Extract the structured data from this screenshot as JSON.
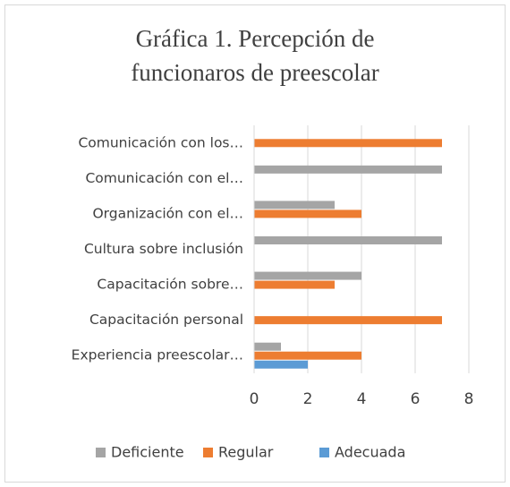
{
  "chart_data": {
    "type": "barh",
    "title": "Gráfica 1. Percepción de funcionaros de preescolar",
    "categories": [
      "Comunicación con los…",
      "Comunicación con el…",
      "Organización con el…",
      "Cultura sobre inclusión",
      "Capacitación sobre…",
      "Capacitación personal",
      "Experiencia preescolar…"
    ],
    "series": [
      {
        "name": "Deficiente",
        "color": "#a5a5a5",
        "values": [
          0,
          7,
          3,
          7,
          4,
          0,
          1
        ]
      },
      {
        "name": "Regular",
        "color": "#ed7d31",
        "values": [
          7,
          0,
          4,
          0,
          3,
          7,
          4
        ]
      },
      {
        "name": "Adecuada",
        "color": "#5b9bd5",
        "values": [
          0,
          0,
          0,
          0,
          0,
          0,
          2
        ]
      }
    ],
    "xlim": [
      0,
      8
    ],
    "xticks": [
      0,
      2,
      4,
      6,
      8
    ],
    "grid": true,
    "legend": "bottom"
  }
}
